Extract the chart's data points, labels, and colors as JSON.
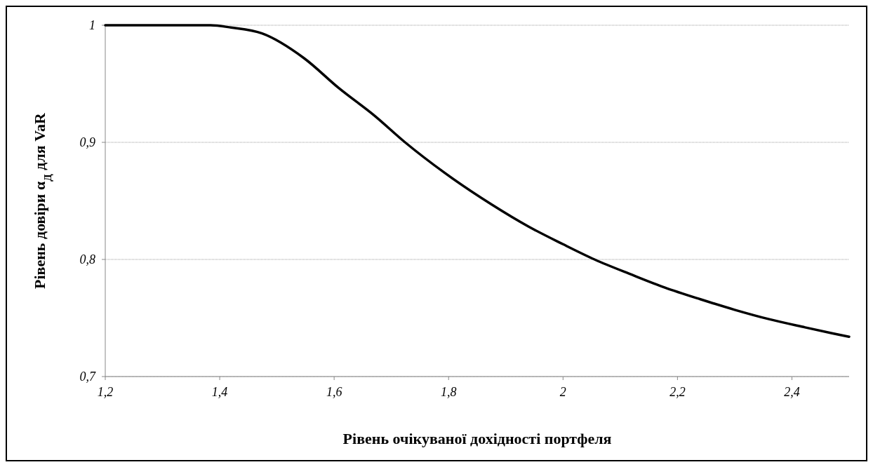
{
  "chart_data": {
    "type": "line",
    "xlabel": "Рівень очікуваної дохідності портфеля",
    "ylabel": "Рівень довіри α$_{Д}$ для VaR",
    "series": [
      {
        "color": "#000000",
        "x": [
          1.2,
          1.3,
          1.384,
          1.42,
          1.474,
          1.547,
          1.609,
          1.67,
          1.724,
          1.793,
          1.875,
          1.94,
          2.0,
          2.055,
          2.12,
          2.178,
          2.24,
          2.3,
          2.36,
          2.423,
          2.47,
          2.5
        ],
        "values": [
          1,
          1,
          1,
          0.998,
          0.993,
          0.972,
          0.946,
          0.923,
          0.9,
          0.874,
          0.847,
          0.828,
          0.813,
          0.8,
          0.787,
          0.776,
          0.766,
          0.757,
          0.749,
          0.742,
          0.737,
          0.734
        ]
      }
    ],
    "xlim": [
      1.2,
      2.5
    ],
    "xticks": [
      {
        "value": 1.2,
        "label": "1,2"
      },
      {
        "value": 1.4,
        "label": "1,4"
      },
      {
        "value": 1.6,
        "label": "1,6"
      },
      {
        "value": 1.8,
        "label": "1,8"
      },
      {
        "value": 2,
        "label": "2"
      },
      {
        "value": 2.2,
        "label": "2,2"
      },
      {
        "value": 2.4,
        "label": "2,4"
      }
    ],
    "ylim": [
      0.7,
      1
    ],
    "yticks": [
      {
        "value": 0.7,
        "label": "0,7"
      },
      {
        "value": 0.8,
        "label": "0,8"
      },
      {
        "value": 0.9,
        "label": "0,9"
      },
      {
        "value": 1,
        "label": "1"
      }
    ],
    "grid": "y",
    "marker": "none",
    "line_style": "solid"
  }
}
